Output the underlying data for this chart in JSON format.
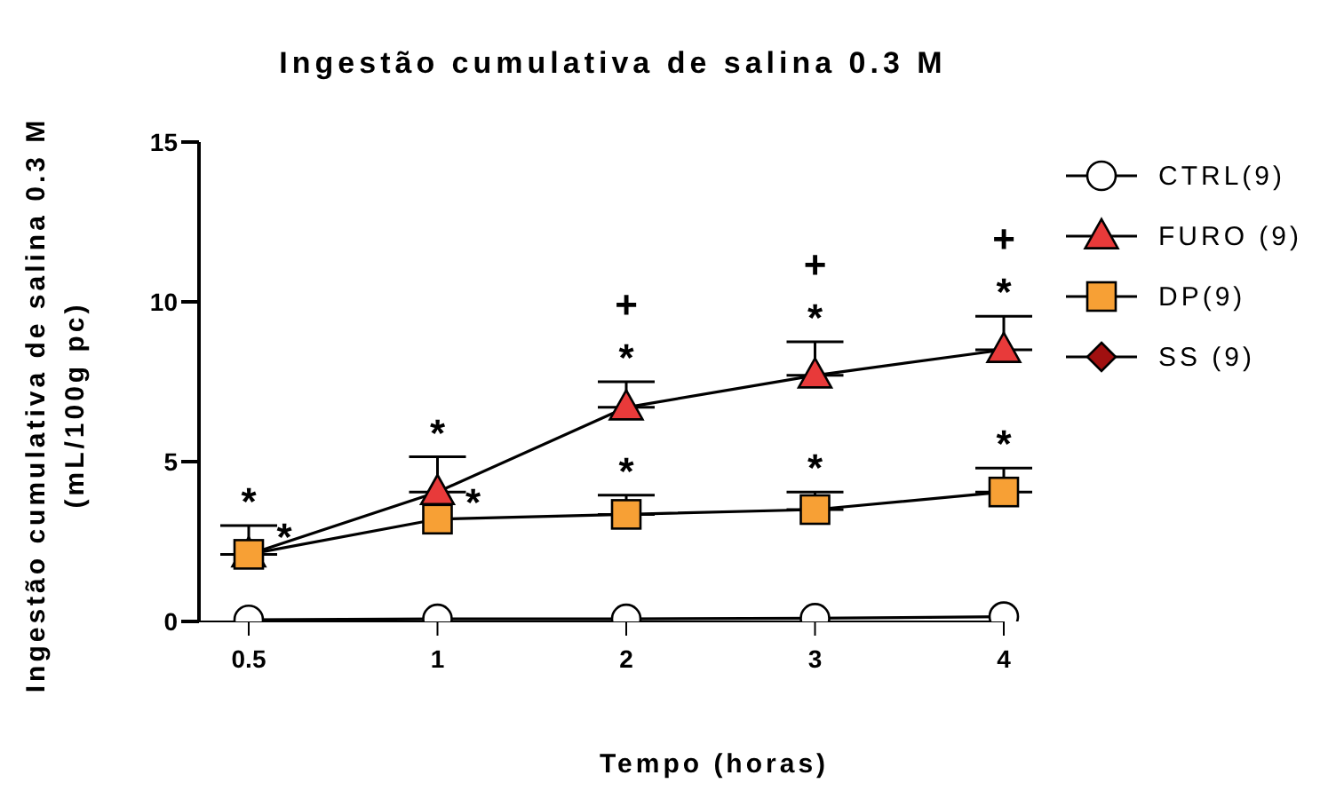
{
  "chart_data": {
    "type": "line",
    "title": "Ingestão cumulativa de salina 0.3 M",
    "xlabel": "Tempo (horas)",
    "ylabel": "Ingestão cumulativa de salina 0.3 M\n(mL/100g pc)",
    "categories": [
      "0.5",
      "1",
      "2",
      "3",
      "4"
    ],
    "ylim": [
      0,
      15
    ],
    "yticks": [
      0,
      5,
      10,
      15
    ],
    "legend": "top right",
    "grid": false,
    "series": [
      {
        "name": "CTRL(9)",
        "color": "#ffffff",
        "marker": "circle",
        "values": [
          0.05,
          0.08,
          0.08,
          0.1,
          0.15
        ]
      },
      {
        "name": "FURO (9)",
        "color": "#e83a3a",
        "marker": "triangle",
        "values": [
          2.1,
          4.05,
          6.7,
          7.7,
          8.5
        ],
        "errors": [
          [
            2.1,
            3.0
          ],
          [
            4.05,
            5.15
          ],
          [
            6.7,
            7.5
          ],
          [
            7.7,
            8.75
          ],
          [
            8.5,
            9.55
          ]
        ],
        "value_labels": [
          "*",
          "*",
          "+\n*",
          "+\n*",
          "+\n*"
        ]
      },
      {
        "name": "DP(9)",
        "color": "#f7a035",
        "marker": "square",
        "values": [
          2.1,
          3.2,
          3.35,
          3.5,
          4.05
        ],
        "errors": [
          null,
          null,
          [
            3.35,
            3.95
          ],
          [
            3.5,
            4.05
          ],
          [
            4.05,
            4.8
          ]
        ],
        "value_labels": [
          "*",
          "*",
          "*",
          "*",
          "*"
        ]
      },
      {
        "name": "SS (9)",
        "color": "#a01010",
        "marker": "diamond",
        "values": [
          null,
          null,
          null,
          null,
          null
        ]
      }
    ]
  }
}
